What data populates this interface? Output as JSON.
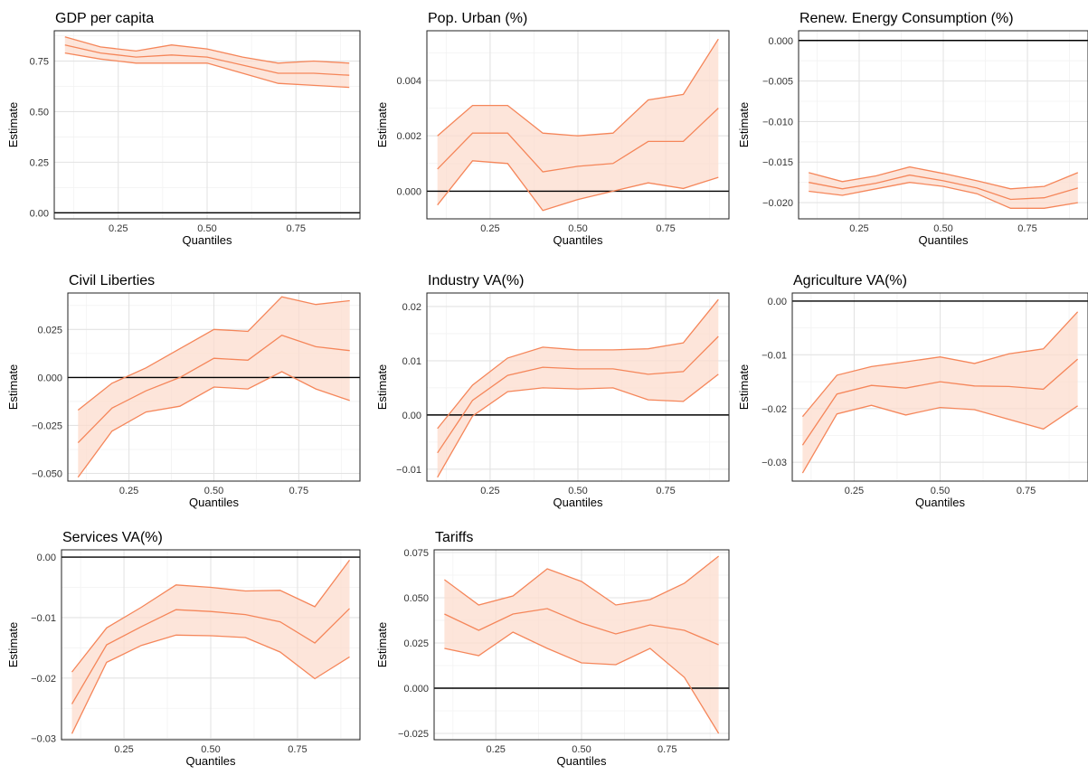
{
  "chart_data": [
    {
      "type": "line",
      "title": "GDP per capita",
      "xlabel": "Quantiles",
      "ylabel": "Estimate",
      "xlim": [
        0.07,
        0.93
      ],
      "ylim": [
        -0.03,
        0.9
      ],
      "xticks": [
        "0.25",
        "0.50",
        "0.75"
      ],
      "yticks": [
        "0.00",
        "0.25",
        "0.50",
        "0.75"
      ],
      "ref_line": 0,
      "x": [
        0.1,
        0.2,
        0.3,
        0.4,
        0.5,
        0.6,
        0.7,
        0.8,
        0.9
      ],
      "series": [
        {
          "role": "upper",
          "values": [
            0.87,
            0.82,
            0.8,
            0.83,
            0.81,
            0.77,
            0.74,
            0.75,
            0.74
          ]
        },
        {
          "role": "estimate",
          "values": [
            0.83,
            0.79,
            0.77,
            0.78,
            0.77,
            0.73,
            0.69,
            0.69,
            0.68
          ]
        },
        {
          "role": "lower",
          "values": [
            0.79,
            0.76,
            0.74,
            0.74,
            0.74,
            0.69,
            0.64,
            0.63,
            0.62
          ]
        }
      ]
    },
    {
      "type": "line",
      "title": "Pop. Urban (%)",
      "xlabel": "Quantiles",
      "ylabel": "Estimate",
      "xlim": [
        0.07,
        0.93
      ],
      "ylim": [
        -0.001,
        0.0058
      ],
      "xticks": [
        "0.25",
        "0.50",
        "0.75"
      ],
      "yticks": [
        "0.000",
        "0.002",
        "0.004"
      ],
      "ref_line": 0,
      "x": [
        0.1,
        0.2,
        0.3,
        0.4,
        0.5,
        0.6,
        0.7,
        0.8,
        0.9
      ],
      "series": [
        {
          "role": "upper",
          "values": [
            0.002,
            0.0031,
            0.0031,
            0.0021,
            0.002,
            0.0021,
            0.0033,
            0.0035,
            0.0055
          ]
        },
        {
          "role": "estimate",
          "values": [
            0.0008,
            0.0021,
            0.0021,
            0.0007,
            0.0009,
            0.001,
            0.0018,
            0.0018,
            0.003
          ]
        },
        {
          "role": "lower",
          "values": [
            -0.0005,
            0.0011,
            0.001,
            -0.0007,
            -0.0003,
            0.0,
            0.0003,
            0.0001,
            0.0005
          ]
        }
      ]
    },
    {
      "type": "line",
      "title": "Renew. Energy Consumption (%)",
      "xlabel": "Quantiles",
      "ylabel": "Estimate",
      "xlim": [
        0.07,
        0.93
      ],
      "ylim": [
        -0.022,
        0.0012
      ],
      "xticks": [
        "0.25",
        "0.50",
        "0.75"
      ],
      "yticks": [
        "−0.020",
        "−0.015",
        "−0.010",
        "−0.005",
        "0.000"
      ],
      "ref_line": 0,
      "x": [
        0.1,
        0.2,
        0.3,
        0.4,
        0.5,
        0.6,
        0.7,
        0.8,
        0.9
      ],
      "series": [
        {
          "role": "upper",
          "values": [
            -0.0163,
            -0.0174,
            -0.0167,
            -0.0156,
            -0.0164,
            -0.0173,
            -0.0183,
            -0.018,
            -0.0163
          ]
        },
        {
          "role": "estimate",
          "values": [
            -0.0175,
            -0.0183,
            -0.0176,
            -0.0166,
            -0.0173,
            -0.0182,
            -0.0196,
            -0.0194,
            -0.0182
          ]
        },
        {
          "role": "lower",
          "values": [
            -0.0186,
            -0.0191,
            -0.0183,
            -0.0175,
            -0.018,
            -0.0189,
            -0.0207,
            -0.0207,
            -0.02
          ]
        }
      ]
    },
    {
      "type": "line",
      "title": "Civil Liberties",
      "xlabel": "Quantiles",
      "ylabel": "Estimate",
      "xlim": [
        0.07,
        0.93
      ],
      "ylim": [
        -0.054,
        0.044
      ],
      "xticks": [
        "0.25",
        "0.50",
        "0.75"
      ],
      "yticks": [
        "−0.050",
        "−0.025",
        "0.000",
        "0.025"
      ],
      "ref_line": 0,
      "x": [
        0.1,
        0.2,
        0.3,
        0.4,
        0.5,
        0.6,
        0.7,
        0.8,
        0.9
      ],
      "series": [
        {
          "role": "upper",
          "values": [
            -0.017,
            -0.003,
            0.005,
            0.015,
            0.025,
            0.024,
            0.042,
            0.038,
            0.04
          ]
        },
        {
          "role": "estimate",
          "values": [
            -0.034,
            -0.016,
            -0.007,
            0.0,
            0.01,
            0.009,
            0.022,
            0.016,
            0.014
          ]
        },
        {
          "role": "lower",
          "values": [
            -0.052,
            -0.028,
            -0.018,
            -0.015,
            -0.005,
            -0.006,
            0.003,
            -0.006,
            -0.012
          ]
        }
      ]
    },
    {
      "type": "line",
      "title": "Industry VA(%)",
      "xlabel": "Quantiles",
      "ylabel": "Estimate",
      "xlim": [
        0.07,
        0.93
      ],
      "ylim": [
        -0.0122,
        0.0225
      ],
      "xticks": [
        "0.25",
        "0.50",
        "0.75"
      ],
      "yticks": [
        "−0.01",
        "0.00",
        "0.01",
        "0.02"
      ],
      "ref_line": 0,
      "x": [
        0.1,
        0.2,
        0.3,
        0.4,
        0.5,
        0.6,
        0.7,
        0.8,
        0.9
      ],
      "series": [
        {
          "role": "upper",
          "values": [
            -0.0025,
            0.0055,
            0.0105,
            0.0125,
            0.012,
            0.012,
            0.0122,
            0.0133,
            0.0213
          ]
        },
        {
          "role": "estimate",
          "values": [
            -0.007,
            0.0027,
            0.0073,
            0.0088,
            0.0085,
            0.0085,
            0.0075,
            0.008,
            0.0145
          ]
        },
        {
          "role": "lower",
          "values": [
            -0.0115,
            -0.0002,
            0.0043,
            0.005,
            0.0048,
            0.005,
            0.0028,
            0.0025,
            0.0075
          ]
        }
      ]
    },
    {
      "type": "line",
      "title": "Agriculture VA(%)",
      "xlabel": "Quantiles",
      "ylabel": "Estimate",
      "xlim": [
        0.07,
        0.93
      ],
      "ylim": [
        -0.0335,
        0.0015
      ],
      "xticks": [
        "0.25",
        "0.50",
        "0.75"
      ],
      "yticks": [
        "−0.03",
        "−0.02",
        "−0.01",
        "0.00"
      ],
      "ref_line": 0,
      "x": [
        0.1,
        0.2,
        0.3,
        0.4,
        0.5,
        0.6,
        0.7,
        0.8,
        0.9
      ],
      "series": [
        {
          "role": "upper",
          "values": [
            -0.0215,
            -0.0138,
            -0.0122,
            -0.0113,
            -0.0104,
            -0.0116,
            -0.0098,
            -0.0089,
            -0.002
          ]
        },
        {
          "role": "estimate",
          "values": [
            -0.0268,
            -0.0173,
            -0.0157,
            -0.0162,
            -0.015,
            -0.0158,
            -0.0159,
            -0.0164,
            -0.0108
          ]
        },
        {
          "role": "lower",
          "values": [
            -0.032,
            -0.021,
            -0.0194,
            -0.0212,
            -0.0198,
            -0.0202,
            -0.022,
            -0.0238,
            -0.0195
          ]
        }
      ]
    },
    {
      "type": "line",
      "title": "Services VA(%)",
      "xlabel": "Quantiles",
      "ylabel": "Estimate",
      "xlim": [
        0.07,
        0.93
      ],
      "ylim": [
        -0.0302,
        0.0012
      ],
      "xticks": [
        "0.25",
        "0.50",
        "0.75"
      ],
      "yticks": [
        "−0.03",
        "−0.02",
        "−0.01",
        "0.00"
      ],
      "ref_line": 0,
      "x": [
        0.1,
        0.2,
        0.3,
        0.4,
        0.5,
        0.6,
        0.7,
        0.8,
        0.9
      ],
      "series": [
        {
          "role": "upper",
          "values": [
            -0.019,
            -0.0117,
            -0.0083,
            -0.0046,
            -0.005,
            -0.0056,
            -0.0055,
            -0.0082,
            -0.0005
          ]
        },
        {
          "role": "estimate",
          "values": [
            -0.0243,
            -0.0145,
            -0.0115,
            -0.0087,
            -0.009,
            -0.0095,
            -0.0107,
            -0.0142,
            -0.0085
          ]
        },
        {
          "role": "lower",
          "values": [
            -0.0292,
            -0.0174,
            -0.0146,
            -0.0129,
            -0.013,
            -0.0133,
            -0.0157,
            -0.0201,
            -0.0165
          ]
        }
      ]
    },
    {
      "type": "line",
      "title": "Tariffs",
      "xlabel": "Quantiles",
      "ylabel": "Estimate",
      "xlim": [
        0.07,
        0.93
      ],
      "ylim": [
        -0.0285,
        0.0765
      ],
      "xticks": [
        "0.25",
        "0.50",
        "0.75"
      ],
      "yticks": [
        "−0.025",
        "0.000",
        "0.025",
        "0.050",
        "0.075"
      ],
      "ref_line": 0,
      "x": [
        0.1,
        0.2,
        0.3,
        0.4,
        0.5,
        0.6,
        0.7,
        0.8,
        0.9
      ],
      "series": [
        {
          "role": "upper",
          "values": [
            0.06,
            0.046,
            0.051,
            0.066,
            0.059,
            0.046,
            0.049,
            0.058,
            0.073
          ]
        },
        {
          "role": "estimate",
          "values": [
            0.041,
            0.032,
            0.041,
            0.044,
            0.036,
            0.03,
            0.035,
            0.032,
            0.024
          ]
        },
        {
          "role": "lower",
          "values": [
            0.022,
            0.018,
            0.031,
            0.022,
            0.014,
            0.013,
            0.022,
            0.006,
            -0.025
          ]
        }
      ]
    }
  ]
}
